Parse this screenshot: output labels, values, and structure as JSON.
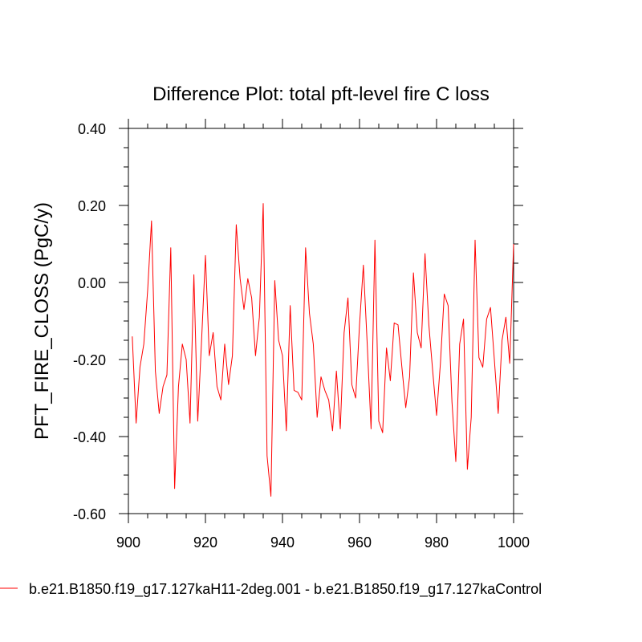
{
  "chart_data": {
    "type": "line",
    "title": "Difference Plot: total pft-level fire C loss",
    "xlabel": "",
    "ylabel": "PFT_FIRE_CLOSS  (PgC/y)",
    "xlim": [
      900,
      1000
    ],
    "ylim": [
      -0.6,
      0.4
    ],
    "grid": false,
    "legend_position": "bottom-left",
    "x_ticks": [
      900,
      920,
      940,
      960,
      980,
      1000
    ],
    "x_tick_labels": [
      "900",
      "920",
      "940",
      "960",
      "980",
      "1000"
    ],
    "y_ticks": [
      -0.6,
      -0.4,
      -0.2,
      0.0,
      0.2,
      0.4
    ],
    "y_tick_labels": [
      "-0.60",
      "-0.40",
      "-0.20",
      "0.00",
      "0.20",
      "0.40"
    ],
    "series": [
      {
        "name": "b.e21.B1850.f19_g17.127kaH11-2deg.001 - b.e21.B1850.f19_g17.127kaControl",
        "color": "#ff0000",
        "x": [
          901,
          902,
          903,
          904,
          905,
          906,
          907,
          908,
          909,
          910,
          911,
          912,
          913,
          914,
          915,
          916,
          917,
          918,
          919,
          920,
          921,
          922,
          923,
          924,
          925,
          926,
          927,
          928,
          929,
          930,
          931,
          932,
          933,
          934,
          935,
          936,
          937,
          938,
          939,
          940,
          941,
          942,
          943,
          944,
          945,
          946,
          947,
          948,
          949,
          950,
          951,
          952,
          953,
          954,
          955,
          956,
          957,
          958,
          959,
          960,
          961,
          962,
          963,
          964,
          965,
          966,
          967,
          968,
          969,
          970,
          971,
          972,
          973,
          974,
          975,
          976,
          977,
          978,
          979,
          980,
          981,
          982,
          983,
          984,
          985,
          986,
          987,
          988,
          989,
          990,
          991,
          992,
          993,
          994,
          995,
          996,
          997,
          998,
          999,
          1000
        ],
        "values": [
          -0.14,
          -0.365,
          -0.22,
          -0.16,
          -0.02,
          0.16,
          -0.23,
          -0.34,
          -0.27,
          -0.24,
          0.09,
          -0.535,
          -0.27,
          -0.16,
          -0.2,
          -0.365,
          0.02,
          -0.36,
          -0.15,
          0.07,
          -0.19,
          -0.13,
          -0.27,
          -0.305,
          -0.16,
          -0.265,
          -0.19,
          0.15,
          0.01,
          -0.07,
          0.01,
          -0.04,
          -0.19,
          -0.09,
          0.205,
          -0.45,
          -0.555,
          0.005,
          -0.15,
          -0.19,
          -0.385,
          -0.06,
          -0.28,
          -0.285,
          -0.305,
          0.09,
          -0.08,
          -0.16,
          -0.35,
          -0.245,
          -0.28,
          -0.305,
          -0.385,
          -0.23,
          -0.38,
          -0.13,
          -0.04,
          -0.265,
          -0.3,
          -0.11,
          0.045,
          -0.16,
          -0.38,
          0.11,
          -0.36,
          -0.39,
          -0.17,
          -0.255,
          -0.105,
          -0.11,
          -0.22,
          -0.325,
          -0.245,
          0.025,
          -0.13,
          -0.17,
          0.075,
          -0.11,
          -0.23,
          -0.345,
          -0.21,
          -0.03,
          -0.06,
          -0.31,
          -0.465,
          -0.16,
          -0.095,
          -0.485,
          -0.35,
          0.11,
          -0.195,
          -0.22,
          -0.095,
          -0.065,
          -0.2,
          -0.34,
          -0.15,
          -0.09,
          -0.21,
          0.1
        ]
      }
    ]
  }
}
